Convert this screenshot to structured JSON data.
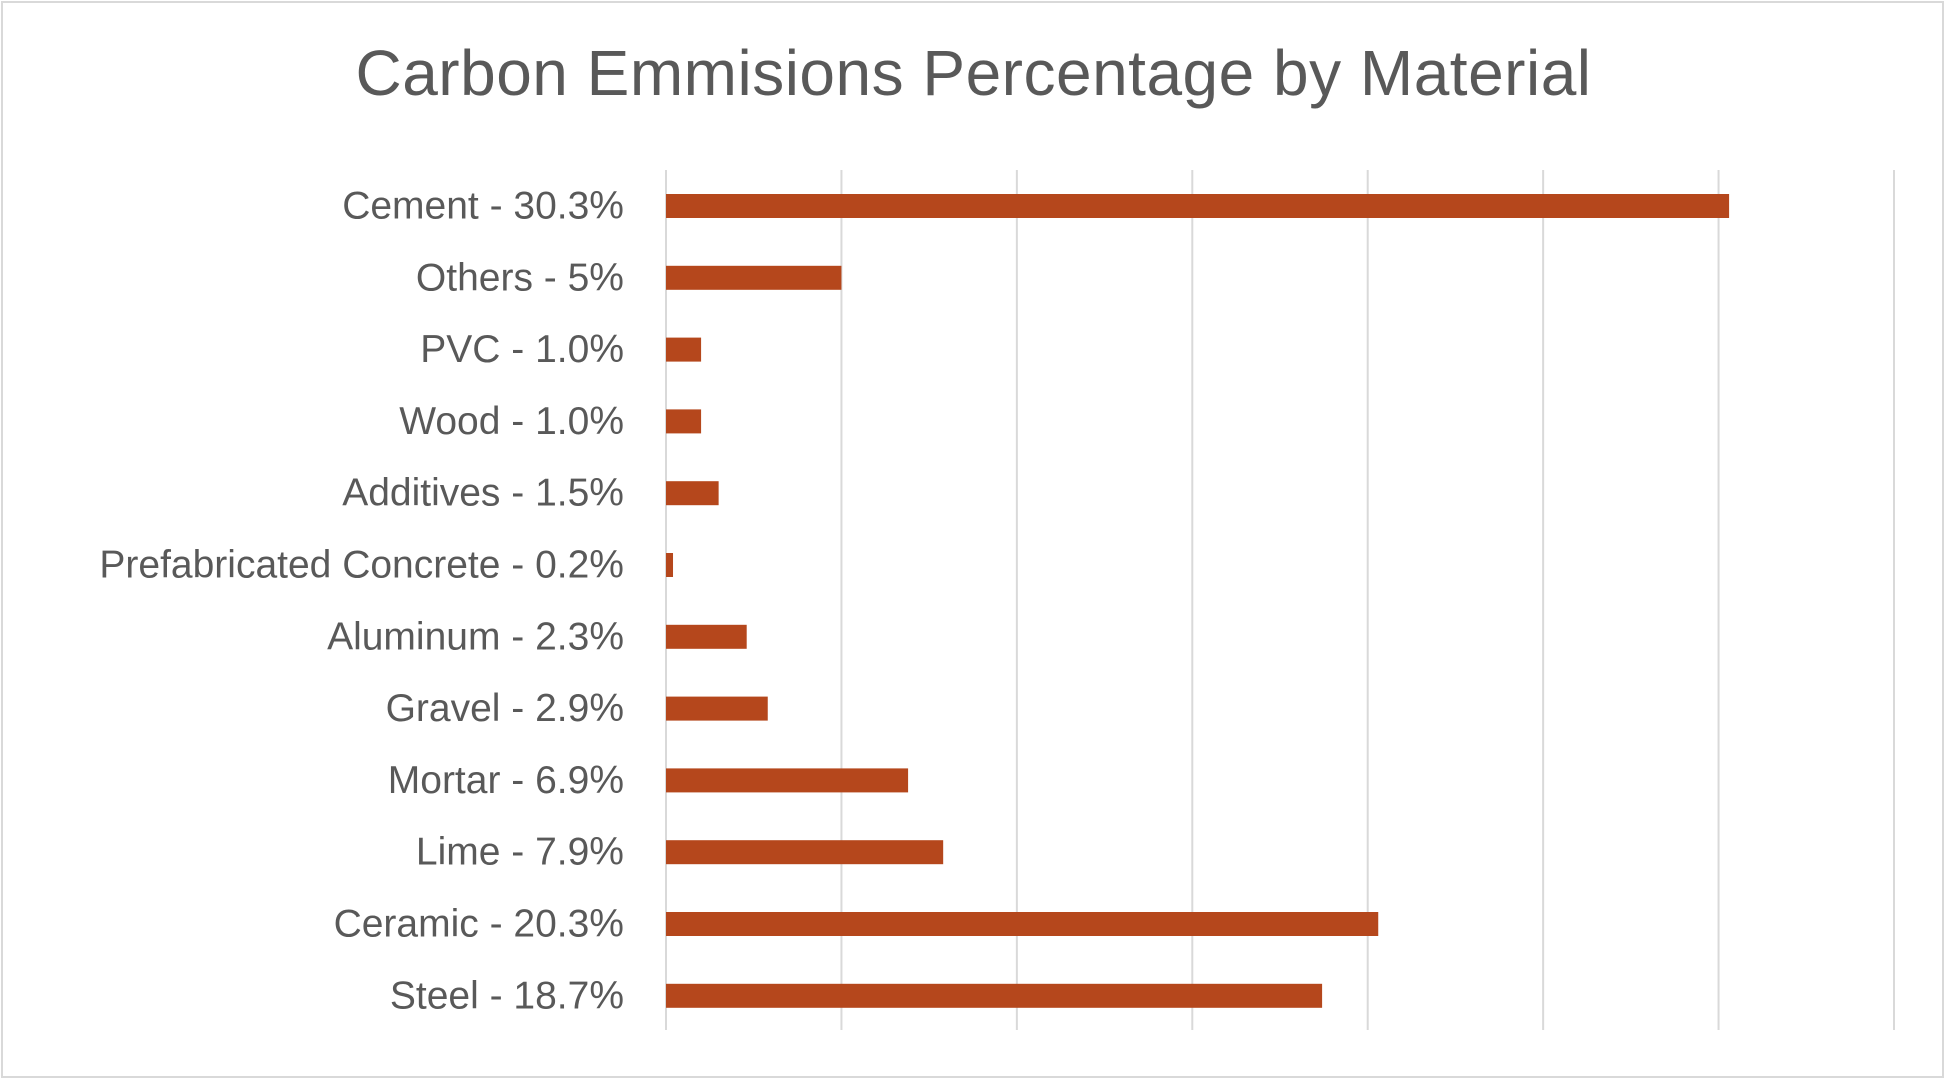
{
  "chart_data": {
    "type": "bar",
    "orientation": "horizontal",
    "title": "Carbon Emmisions Percentage by Material",
    "xlabel": "",
    "ylabel": "",
    "categories": [
      "Cement - 30.3%",
      "Others - 5%",
      "PVC - 1.0%",
      "Wood - 1.0%",
      "Additives - 1.5%",
      "Prefabricated Concrete - 0.2%",
      "Aluminum - 2.3%",
      "Gravel - 2.9%",
      "Mortar - 6.9%",
      "Lime - 7.9%",
      "Ceramic - 20.3%",
      "Steel - 18.7%"
    ],
    "values": [
      30.3,
      5,
      1.0,
      1.0,
      1.5,
      0.2,
      2.3,
      2.9,
      6.9,
      7.9,
      20.3,
      18.7
    ],
    "xlim": [
      0,
      35
    ],
    "x_gridline_step": 5,
    "grid": true,
    "legend": "none",
    "bar_color": "#b5471c",
    "gridline_color": "#d9d9d9"
  }
}
